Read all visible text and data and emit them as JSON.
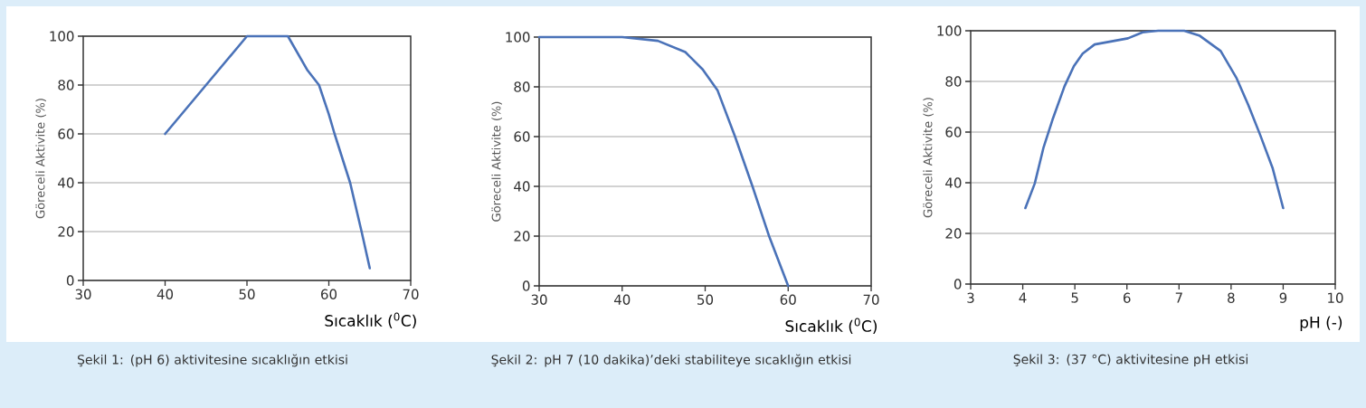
{
  "chart_data": [
    {
      "type": "line",
      "xlabel": "Sıcaklık ($^{0}$C)",
      "ylabel": "Göreceli Aktivite (%)",
      "annotations": [
        "Şekil 1: (pH 6) aktivitesine sıcaklığın etkisi"
      ],
      "x": [
        40,
        45,
        50,
        55,
        57.4,
        58.8,
        60,
        60.7,
        62.6,
        64,
        65
      ],
      "series": [
        {
          "color": "#4a72b8",
          "values": [
            60,
            80,
            100,
            100,
            86,
            80,
            68,
            60,
            40,
            20,
            5
          ]
        }
      ],
      "xlim": [
        30,
        70
      ],
      "ylim": [
        0,
        100
      ],
      "xticks": [
        30,
        40,
        50,
        60,
        70
      ],
      "yticks": [
        0,
        20,
        40,
        60,
        80,
        100
      ],
      "grid": "y"
    },
    {
      "type": "line",
      "xlabel": "Sıcaklık ($^{0}$C)",
      "ylabel": "Göreceli Aktivite (%)",
      "annotations": [
        "Şekil 2: pH 7 (10 dakika)’deki stabiliteye sıcaklığın etkisi"
      ],
      "x": [
        30,
        40,
        44.3,
        47.6,
        49.7,
        51.5,
        53.6,
        55.7,
        57.7,
        60
      ],
      "series": [
        {
          "color": "#4a72b8",
          "values": [
            100,
            100,
            98.5,
            94,
            87,
            78.5,
            60,
            40,
            20,
            0
          ]
        }
      ],
      "xlim": [
        30,
        70
      ],
      "ylim": [
        0,
        100
      ],
      "xticks": [
        30,
        40,
        50,
        60,
        70
      ],
      "yticks": [
        0,
        20,
        40,
        60,
        80,
        100
      ],
      "grid": "y"
    },
    {
      "type": "line",
      "xlabel": "pH (-)",
      "ylabel": "Göreceli Aktivite (%)",
      "annotations": [
        "Şekil 3: (37 °C) aktivitesine pH etkisi"
      ],
      "x": [
        4.05,
        4.23,
        4.4,
        4.57,
        4.8,
        4.98,
        5.15,
        5.38,
        6.02,
        6.3,
        6.6,
        7.1,
        7.4,
        7.8,
        8.1,
        8.33,
        8.56,
        8.8,
        9
      ],
      "series": [
        {
          "color": "#4a72b8",
          "values": [
            30,
            39.7,
            54,
            64.8,
            78,
            86,
            91,
            94.6,
            97,
            99.4,
            100,
            100,
            98,
            92,
            81.5,
            70.7,
            58.8,
            45.6,
            30
          ]
        }
      ],
      "xlim": [
        3,
        10
      ],
      "ylim": [
        0,
        100
      ],
      "xticks": [
        3,
        4,
        5,
        6,
        7,
        8,
        9,
        10
      ],
      "yticks": [
        0,
        20,
        40,
        60,
        80,
        100
      ],
      "grid": "y"
    }
  ]
}
